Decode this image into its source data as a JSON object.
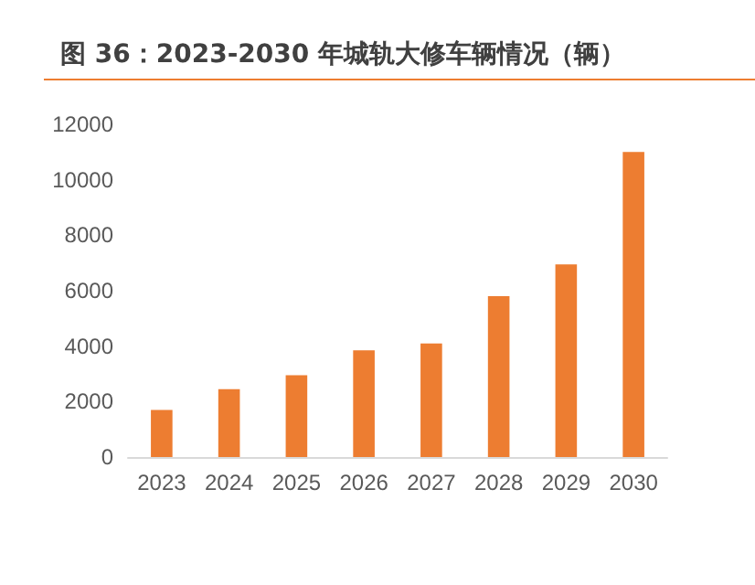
{
  "chart_data": {
    "type": "bar",
    "title": "图 36：2023-2030 年城轨大修车辆情况（辆）",
    "categories": [
      "2023",
      "2024",
      "2025",
      "2026",
      "2027",
      "2028",
      "2029",
      "2030"
    ],
    "values": [
      1700,
      2450,
      2950,
      3850,
      4100,
      5800,
      6950,
      11000
    ],
    "color": "#ed7d31",
    "ylim": [
      0,
      12000
    ],
    "yticks": [
      0,
      2000,
      4000,
      6000,
      8000,
      10000,
      12000
    ],
    "grid": false
  }
}
